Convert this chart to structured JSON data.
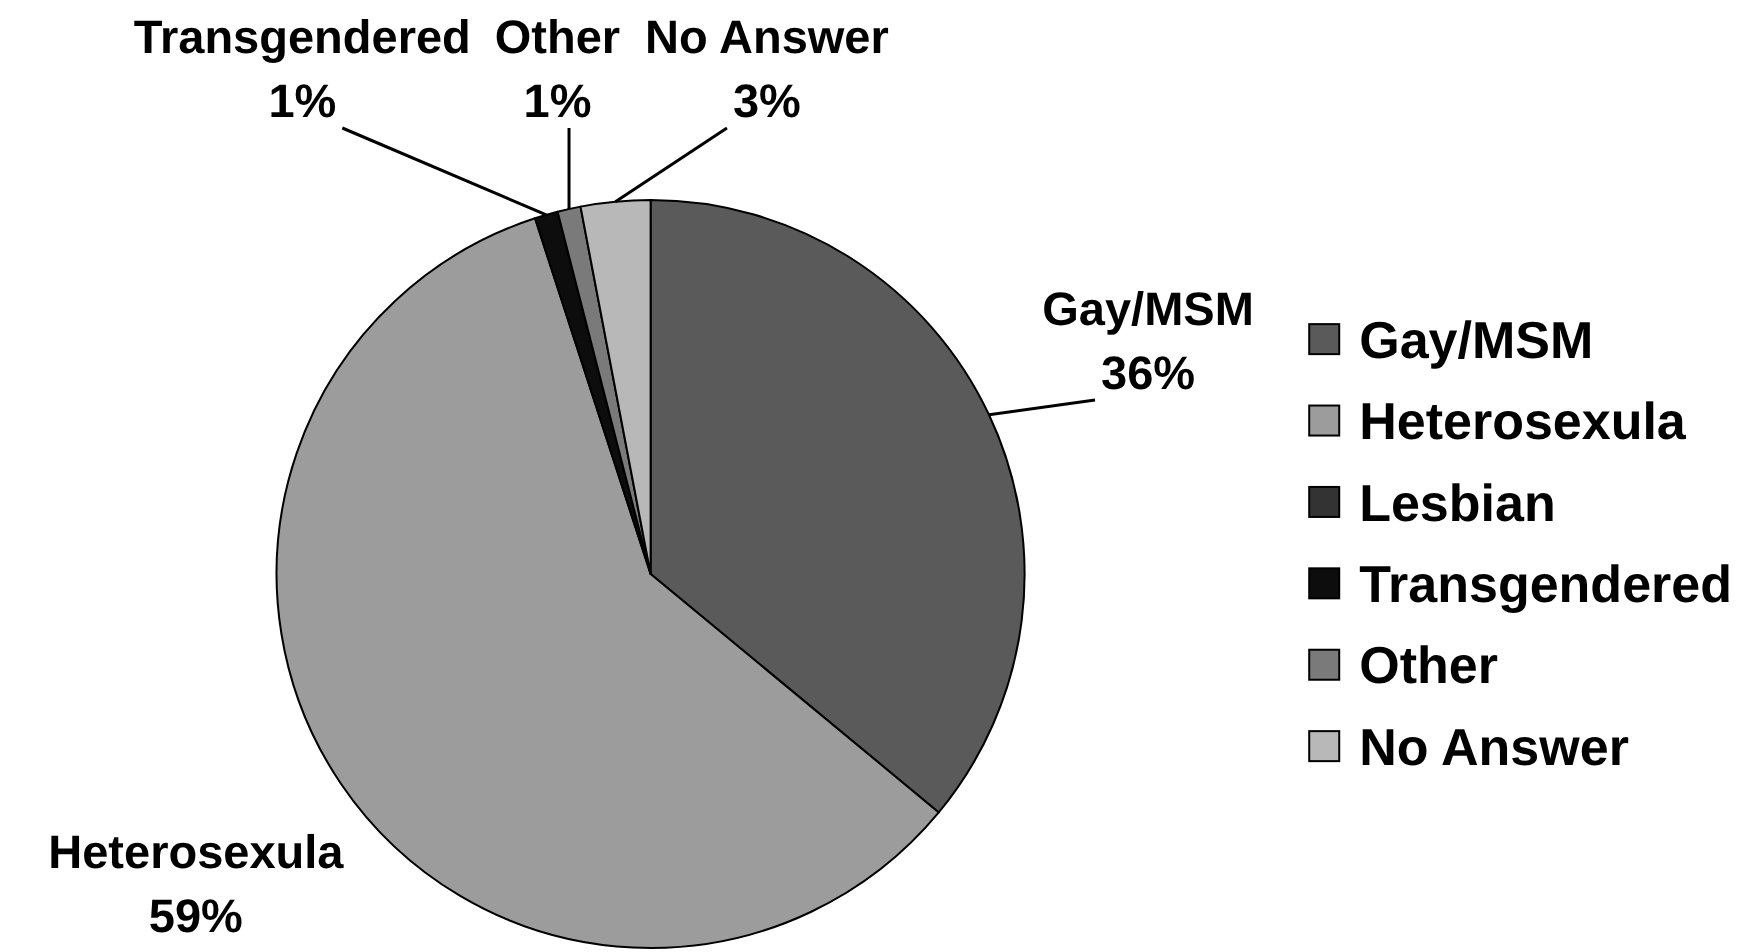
{
  "chart_data": {
    "type": "pie",
    "categories": [
      "Gay/MSM",
      "Heterosexula",
      "Lesbian",
      "Transgendered",
      "Other",
      "No Answer"
    ],
    "values": [
      36,
      59,
      0,
      1,
      1,
      3
    ],
    "colors": [
      "#5a5a5a",
      "#9c9c9c",
      "#333333",
      "#0d0d0d",
      "#7a7a7a",
      "#b8b8b8"
    ],
    "value_labels": [
      "36%",
      "59%",
      null,
      "1%",
      "1%",
      "3%"
    ],
    "legend": "right"
  }
}
